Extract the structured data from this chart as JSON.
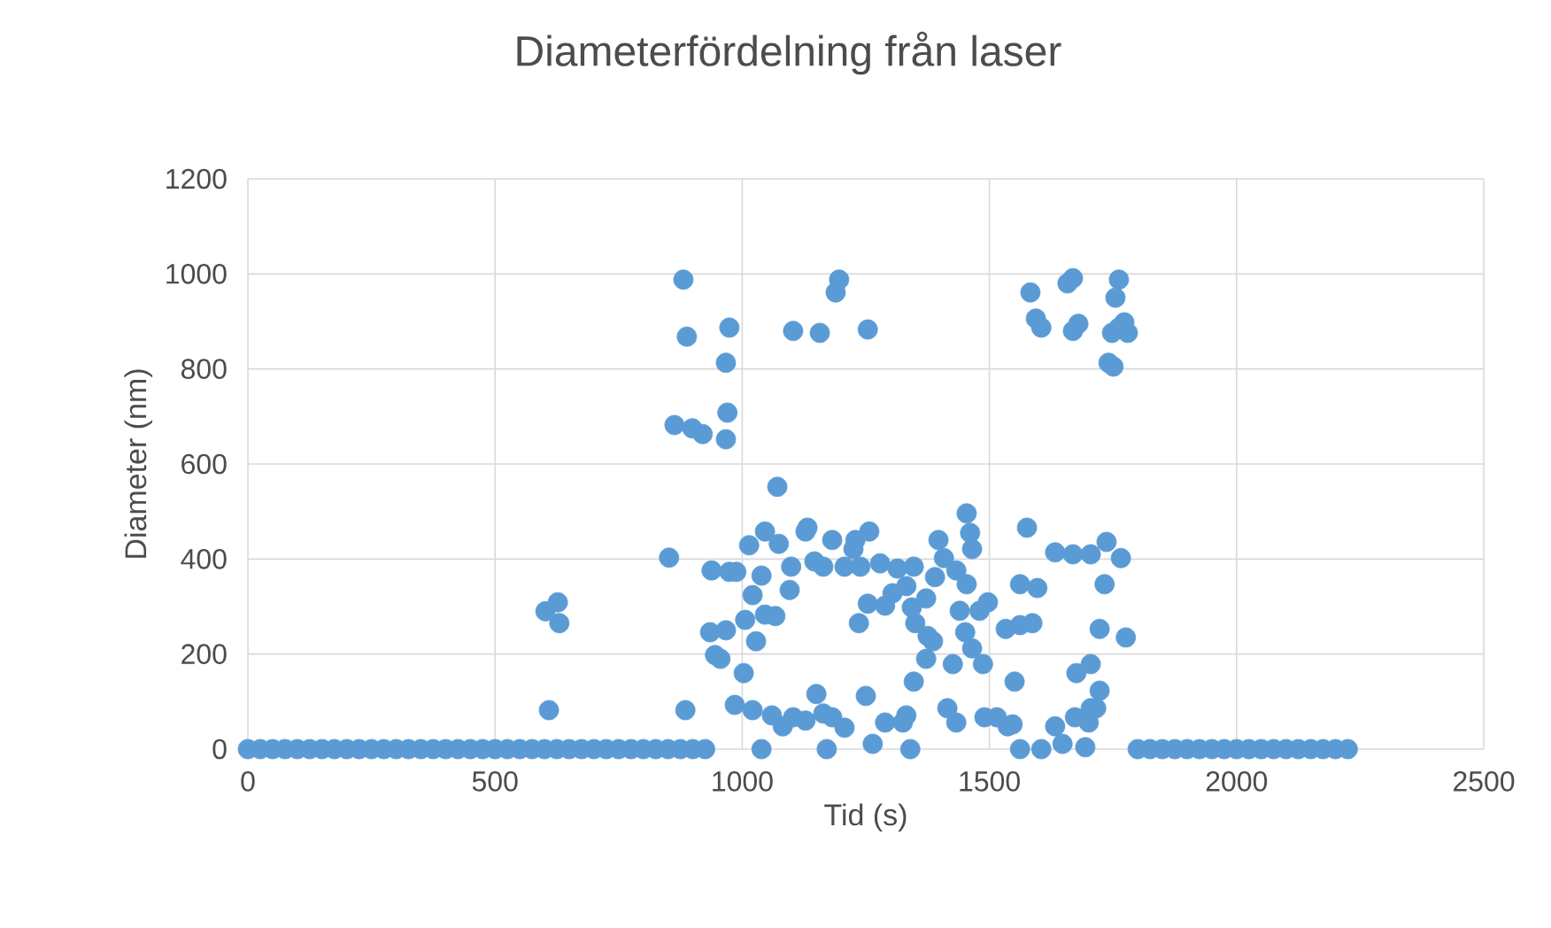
{
  "chart_data": {
    "type": "scatter",
    "title": "Diameterfördelning från laser",
    "xlabel": "Tid (s)",
    "ylabel": "Diameter (nm)",
    "xlim": [
      0,
      2500
    ],
    "xticks": [
      0,
      500,
      1000,
      1500,
      2000,
      2500
    ],
    "ylim": [
      0,
      1200
    ],
    "yticks": [
      0,
      200,
      400,
      600,
      800,
      1000,
      1200
    ],
    "grid": true,
    "marker": "circle",
    "series": [
      {
        "color": "#5b9bd5",
        "x": [
          0,
          25,
          50,
          75,
          100,
          125,
          150,
          175,
          200,
          225,
          250,
          275,
          300,
          325,
          350,
          375,
          400,
          425,
          450,
          475,
          500,
          525,
          550,
          575,
          600,
          625,
          650,
          675,
          700,
          725,
          750,
          775,
          800,
          825,
          850,
          875,
          900,
          925,
          1800,
          1825,
          1850,
          1875,
          1900,
          1925,
          1950,
          1975,
          2000,
          2025,
          2050,
          2075,
          2100,
          2125,
          2150,
          2175,
          2200,
          2225,
          602,
          609,
          627,
          630,
          852,
          863,
          881,
          885,
          888,
          899,
          920,
          935,
          938,
          945,
          956,
          967,
          967,
          967,
          970,
          974,
          974,
          985,
          988,
          1003,
          1006,
          1014,
          1021,
          1021,
          1028,
          1039,
          1039,
          1046,
          1046,
          1060,
          1067,
          1071,
          1074,
          1082,
          1096,
          1099,
          1103,
          1103,
          1128,
          1128,
          1132,
          1146,
          1150,
          1157,
          1164,
          1164,
          1171,
          1182,
          1182,
          1189,
          1196,
          1207,
          1207,
          1225,
          1229,
          1236,
          1239,
          1250,
          1254,
          1254,
          1257,
          1264,
          1279,
          1289,
          1289,
          1304,
          1314,
          1325,
          1332,
          1332,
          1340,
          1343,
          1347,
          1347,
          1350,
          1372,
          1372,
          1375,
          1386,
          1390,
          1397,
          1408,
          1415,
          1426,
          1433,
          1433,
          1440,
          1451,
          1454,
          1454,
          1461,
          1465,
          1465,
          1480,
          1487,
          1490,
          1497,
          1515,
          1533,
          1537,
          1547,
          1551,
          1562,
          1562,
          1562,
          1576,
          1583,
          1587,
          1594,
          1597,
          1605,
          1605,
          1633,
          1633,
          1648,
          1658,
          1669,
          1669,
          1669,
          1673,
          1676,
          1680,
          1694,
          1701,
          1705,
          1705,
          1705,
          1716,
          1723,
          1723,
          1733,
          1737,
          1741,
          1748,
          1751,
          1755,
          1762,
          1762,
          1766,
          1773,
          1776,
          1780
        ],
        "values": [
          0,
          0,
          0,
          0,
          0,
          0,
          0,
          0,
          0,
          0,
          0,
          0,
          0,
          0,
          0,
          0,
          0,
          0,
          0,
          0,
          0,
          0,
          0,
          0,
          0,
          0,
          0,
          0,
          0,
          0,
          0,
          0,
          0,
          0,
          0,
          0,
          0,
          0,
          0,
          0,
          0,
          0,
          0,
          0,
          0,
          0,
          0,
          0,
          0,
          0,
          0,
          0,
          0,
          0,
          0,
          0,
          290,
          82,
          309,
          265,
          403,
          682,
          988,
          82,
          868,
          675,
          663,
          246,
          376,
          198,
          190,
          813,
          652,
          250,
          708,
          887,
          373,
          93,
          373,
          160,
          272,
          429,
          324,
          82,
          227,
          365,
          0,
          458,
          283,
          71,
          280,
          552,
          432,
          48,
          335,
          384,
          880,
          67,
          458,
          60,
          466,
          395,
          116,
          876,
          384,
          75,
          0,
          440,
          67,
          961,
          988,
          384,
          45,
          421,
          440,
          265,
          384,
          112,
          883,
          306,
          458,
          11,
          391,
          302,
          56,
          328,
          380,
          56,
          343,
          71,
          0,
          298,
          384,
          142,
          265,
          317,
          190,
          238,
          227,
          362,
          440,
          402,
          86,
          179,
          376,
          56,
          291,
          246,
          347,
          496,
          455,
          212,
          421,
          291,
          179,
          67,
          309,
          67,
          253,
          48,
          52,
          142,
          261,
          347,
          0,
          466,
          961,
          265,
          906,
          339,
          887,
          0,
          414,
          48,
          11,
          980,
          991,
          880,
          410,
          67,
          160,
          895,
          4,
          56,
          410,
          179,
          86,
          86,
          123,
          253,
          347,
          436,
          813,
          876,
          805,
          950,
          887,
          988,
          402,
          898,
          235,
          876
        ]
      }
    ]
  }
}
